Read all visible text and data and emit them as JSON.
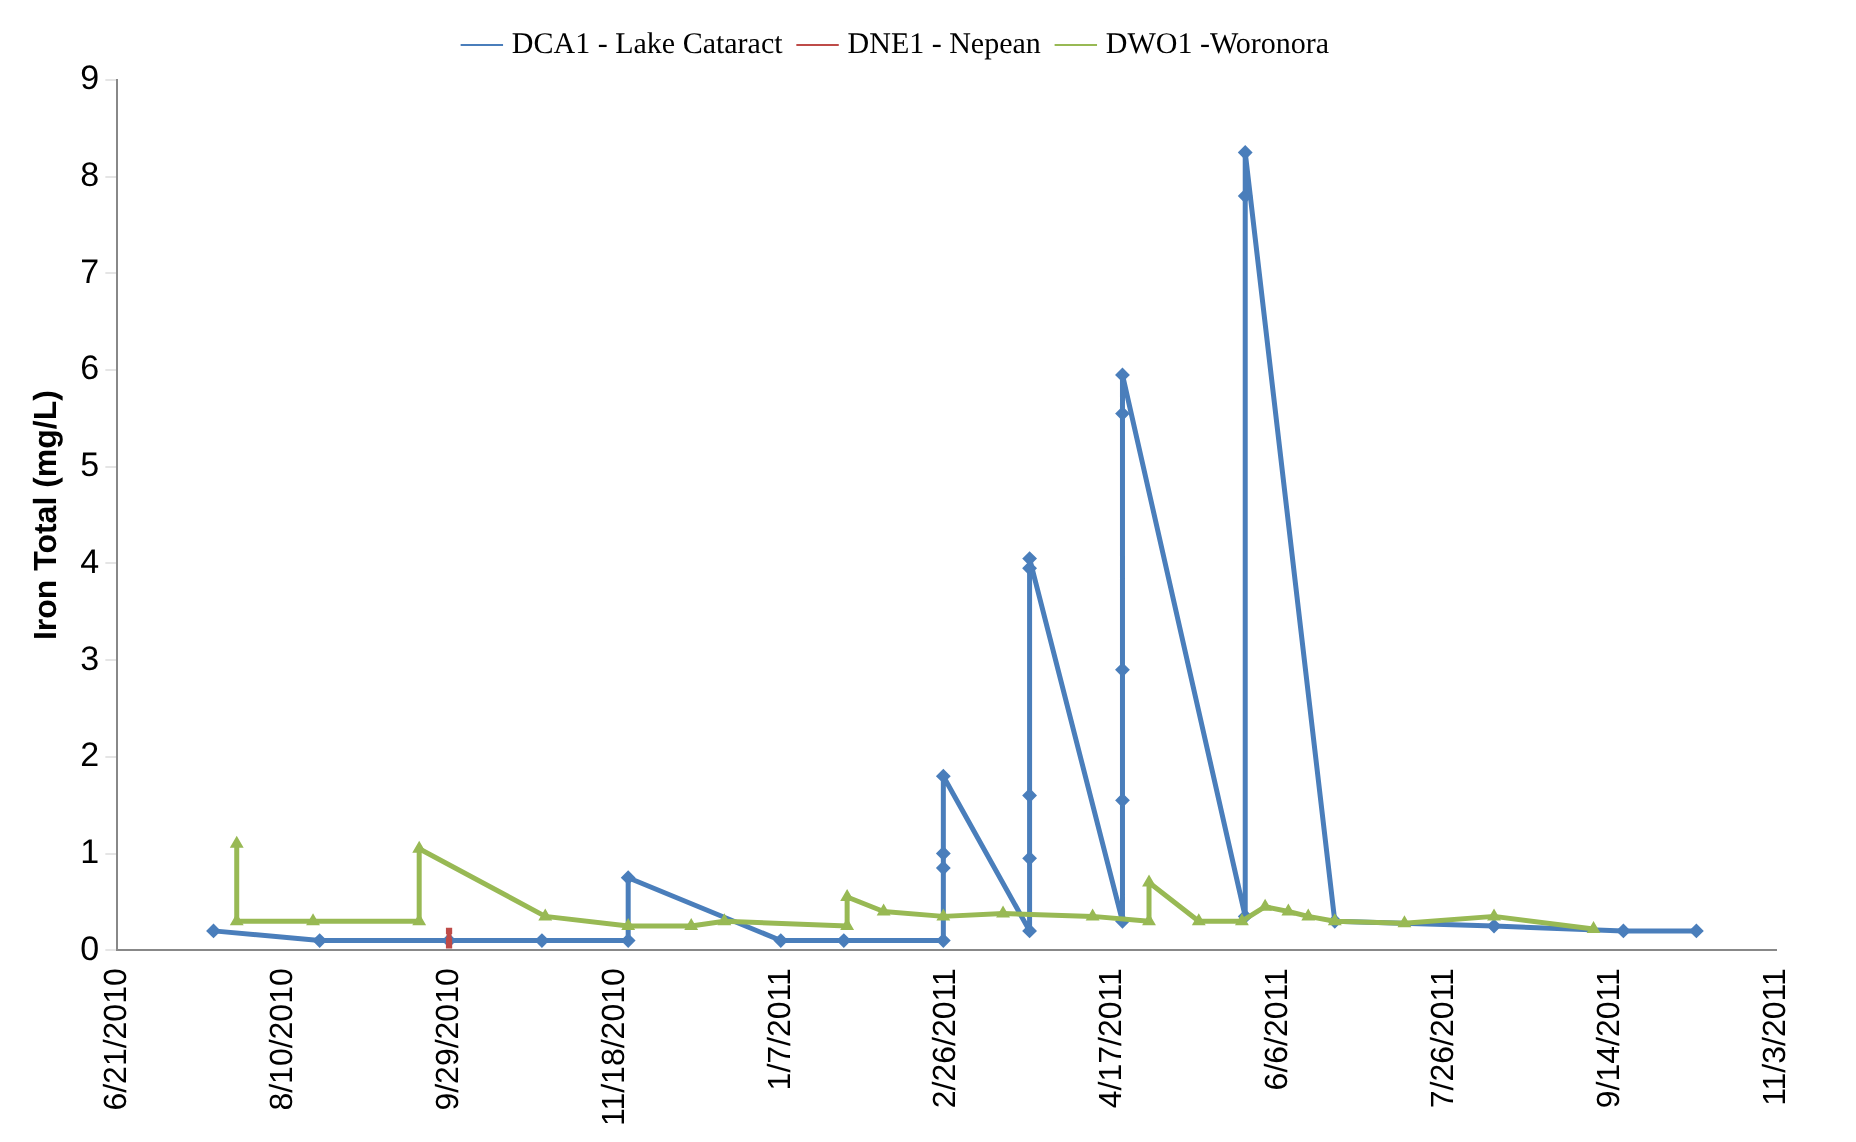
{
  "chart_data": {
    "type": "line",
    "ylabel": "Iron Total (mg/L)",
    "xlim": [
      "2010-06-21",
      "2011-11-03"
    ],
    "xticks": [
      {
        "value": "2010-06-21",
        "label": "6/21/2010"
      },
      {
        "value": "2010-08-10",
        "label": "8/10/2010"
      },
      {
        "value": "2010-09-29",
        "label": "9/29/2010"
      },
      {
        "value": "2010-11-18",
        "label": "11/18/2010"
      },
      {
        "value": "2011-01-07",
        "label": "1/7/2011"
      },
      {
        "value": "2011-02-26",
        "label": "2/26/2011"
      },
      {
        "value": "2011-04-17",
        "label": "4/17/2011"
      },
      {
        "value": "2011-06-06",
        "label": "6/6/2011"
      },
      {
        "value": "2011-07-26",
        "label": "7/26/2011"
      },
      {
        "value": "2011-09-14",
        "label": "9/14/2011"
      },
      {
        "value": "2011-11-03",
        "label": "11/3/2011"
      }
    ],
    "ylim": [
      0,
      9
    ],
    "yticks": [
      0,
      1,
      2,
      3,
      4,
      5,
      6,
      7,
      8,
      9
    ],
    "grid": false,
    "legend": "top",
    "line_style": "solid",
    "series": [
      {
        "name": "DCA1 - Lake Cataract",
        "color": "#4a7ebb",
        "marker": "diamond",
        "x": [
          "2010-07-20",
          "2010-08-21",
          "2010-09-29",
          "2010-10-27",
          "2010-11-22",
          "2010-11-22",
          "2011-01-07",
          "2011-01-26",
          "2011-02-25",
          "2011-02-25",
          "2011-02-25",
          "2011-02-25",
          "2011-03-23",
          "2011-03-23",
          "2011-03-23",
          "2011-03-23",
          "2011-03-23",
          "2011-04-20",
          "2011-04-20",
          "2011-04-20",
          "2011-04-20",
          "2011-04-20",
          "2011-05-27",
          "2011-05-27",
          "2011-05-27",
          "2011-06-23",
          "2011-08-10",
          "2011-09-18",
          "2011-10-10"
        ],
        "values": [
          0.2,
          0.1,
          0.1,
          0.1,
          0.1,
          0.75,
          0.1,
          0.1,
          0.1,
          0.85,
          1.0,
          1.8,
          0.2,
          0.95,
          1.6,
          3.95,
          4.05,
          0.3,
          1.55,
          2.9,
          5.55,
          5.95,
          0.35,
          7.8,
          8.25,
          0.3,
          0.25,
          0.2,
          0.2
        ]
      },
      {
        "name": "DNE1 - Nepean",
        "color": "#be4b48",
        "marker": "square",
        "x": [
          "2010-09-29",
          "2010-09-29",
          "2010-09-29"
        ],
        "values": [
          0.05,
          0.1,
          0.2
        ]
      },
      {
        "name": "DWO1 -Woronora",
        "color": "#98b954",
        "marker": "triangle",
        "x": [
          "2010-07-27",
          "2010-07-27",
          "2010-08-19",
          "2010-09-20",
          "2010-09-20",
          "2010-10-28",
          "2010-11-22",
          "2010-12-11",
          "2010-12-21",
          "2011-01-27",
          "2011-01-27",
          "2011-02-07",
          "2011-02-25",
          "2011-03-15",
          "2011-04-11",
          "2011-04-28",
          "2011-04-28",
          "2011-05-13",
          "2011-05-26",
          "2011-06-02",
          "2011-06-09",
          "2011-06-15",
          "2011-06-23",
          "2011-07-14",
          "2011-08-10",
          "2011-09-09"
        ],
        "values": [
          1.1,
          0.3,
          0.3,
          0.3,
          1.05,
          0.35,
          0.25,
          0.25,
          0.3,
          0.25,
          0.55,
          0.4,
          0.35,
          0.38,
          0.35,
          0.3,
          0.7,
          0.3,
          0.3,
          0.45,
          0.4,
          0.35,
          0.3,
          0.28,
          0.35,
          0.22
        ]
      }
    ]
  }
}
